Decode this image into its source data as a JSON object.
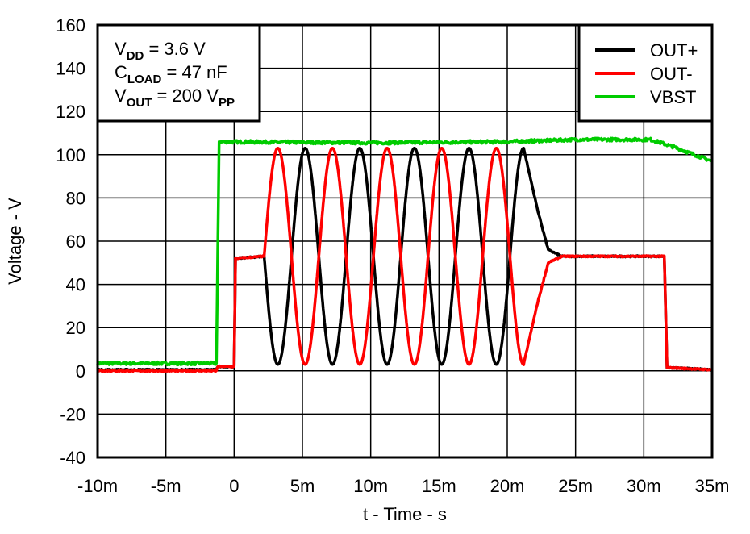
{
  "chart_data": {
    "type": "line",
    "xlabel": "t - Time - s",
    "ylabel": "Voltage - V",
    "xlim": [
      -10,
      35
    ],
    "ylim": [
      -40,
      160
    ],
    "x_unit": "ms",
    "grid": true,
    "legend_position": "top-right",
    "x_ticks": [
      -10,
      -5,
      0,
      5,
      10,
      15,
      20,
      25,
      30,
      35
    ],
    "x_tick_labels": [
      "-10m",
      "-5m",
      "0",
      "5m",
      "10m",
      "15m",
      "20m",
      "25m",
      "30m",
      "35m"
    ],
    "y_ticks": [
      160,
      140,
      120,
      100,
      80,
      60,
      40,
      20,
      0,
      -20,
      -40
    ],
    "y_tick_labels": [
      "160",
      "140",
      "120",
      "100",
      "80",
      "60",
      "40",
      "20",
      "0",
      "-20",
      "-40"
    ],
    "annotation": {
      "lines": [
        {
          "main": "V",
          "sub": "DD",
          "rest": " = 3.6 V",
          "sub2": ""
        },
        {
          "main": "C",
          "sub": "LOAD",
          "rest": " = 47 nF",
          "sub2": ""
        },
        {
          "main": "V",
          "sub": "OUT",
          "rest": " = 200 V",
          "sub2": "PP"
        }
      ]
    },
    "series": [
      {
        "name": "OUT+",
        "color": "#000000",
        "points": [
          [
            -10,
            0.5
          ],
          [
            -1.3,
            0.5
          ],
          [
            -1.2,
            2
          ],
          [
            0,
            2
          ],
          [
            0.1,
            52
          ],
          [
            2.2,
            53
          ]
        ],
        "oscillation": {
          "start": 2.2,
          "end": 21.2,
          "offset": 53,
          "amplitude": 50,
          "period": 4,
          "peak_at": 5.2
        },
        "points_after": [
          [
            21.2,
            103
          ],
          [
            22.2,
            75
          ],
          [
            23.0,
            56
          ],
          [
            24.0,
            53
          ],
          [
            31.5,
            53
          ],
          [
            31.7,
            1.5
          ],
          [
            35,
            0.5
          ]
        ]
      },
      {
        "name": "OUT-",
        "color": "#ff0000",
        "points": [
          [
            -10,
            0
          ],
          [
            -1.3,
            0
          ],
          [
            -1.2,
            2
          ],
          [
            0,
            2
          ],
          [
            0.1,
            52
          ],
          [
            2.2,
            53
          ]
        ],
        "oscillation": {
          "start": 2.2,
          "end": 21.2,
          "offset": 53,
          "amplitude": 50,
          "period": 4,
          "peak_at": 3.2
        },
        "points_after": [
          [
            21.2,
            3
          ],
          [
            22.2,
            31
          ],
          [
            23.0,
            50
          ],
          [
            24.0,
            53
          ],
          [
            31.5,
            53
          ],
          [
            31.7,
            1.5
          ],
          [
            35,
            0.5
          ]
        ]
      },
      {
        "name": "VBST",
        "color": "#00cc00",
        "points": [
          [
            -10,
            3.5
          ],
          [
            -1.3,
            3.5
          ],
          [
            -1.1,
            106
          ],
          [
            10,
            105.5
          ],
          [
            20,
            106
          ],
          [
            25,
            107
          ],
          [
            30.5,
            107
          ],
          [
            32,
            104
          ],
          [
            35,
            97
          ]
        ]
      }
    ]
  }
}
